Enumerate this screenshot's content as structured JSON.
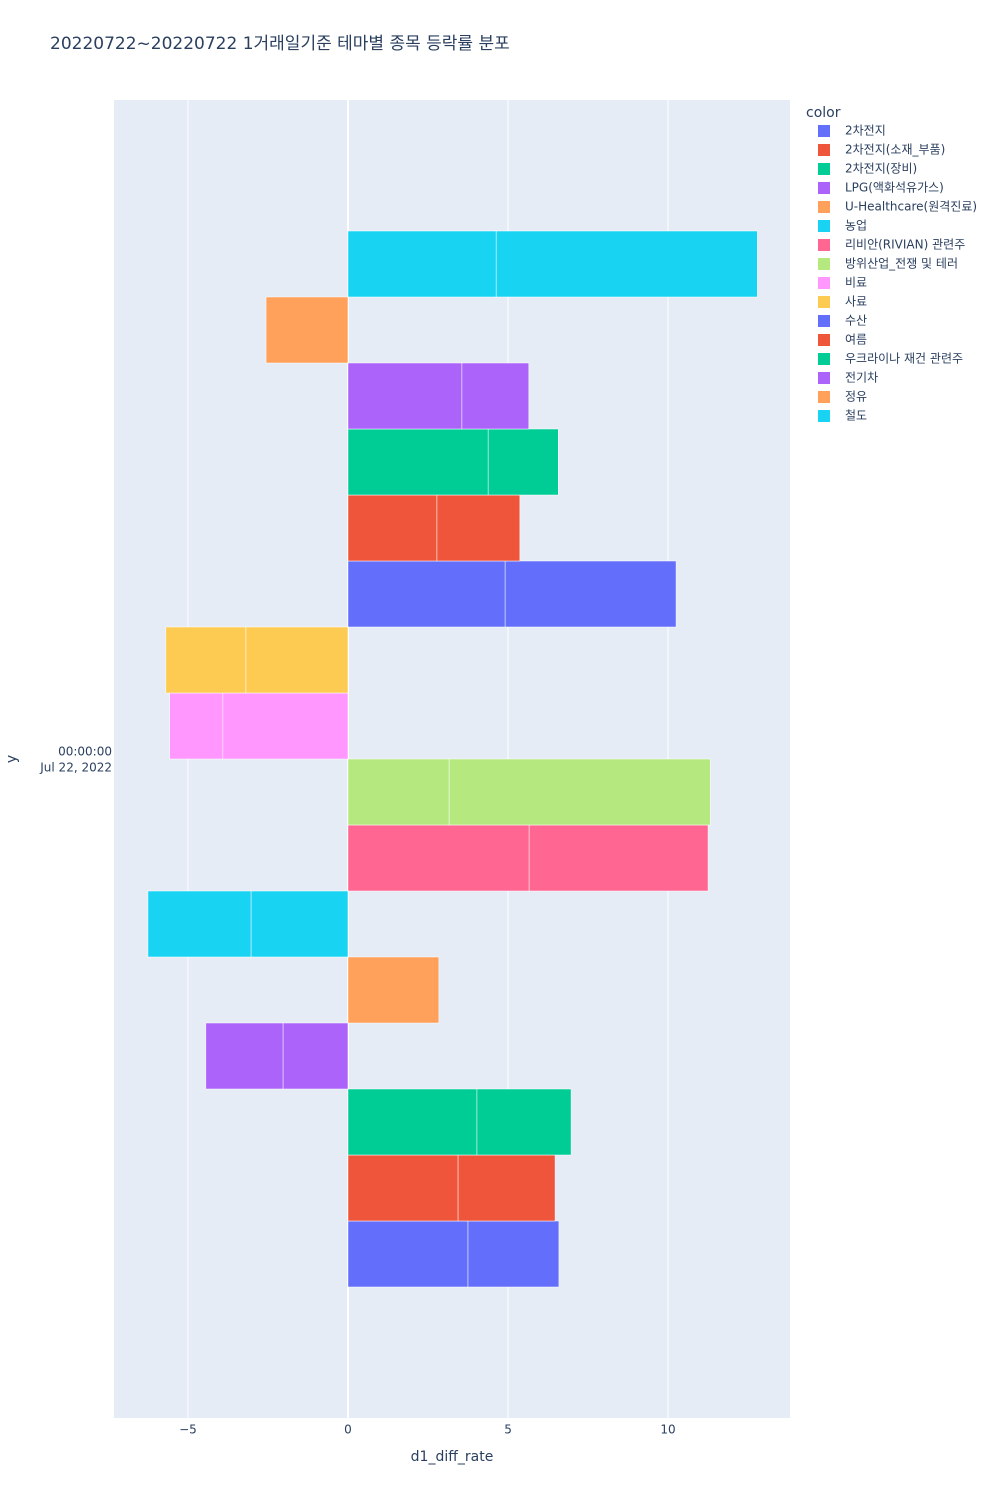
{
  "chart_data": {
    "type": "bar",
    "orientation": "h",
    "title": "20220722~20220722 1거래일기준 테마별 종목 등락률 분포",
    "x_label": "d1_diff_rate",
    "y_label": "y",
    "y_tick_label": [
      "00:00:00",
      "Jul 22, 2022"
    ],
    "legend_title": "color",
    "xlim": [
      -7.31,
      13.81
    ],
    "xticks": [
      {
        "value": -5,
        "label": "−5"
      },
      0,
      5,
      10
    ],
    "grid": true,
    "series": [
      {
        "name": "2차전지",
        "color": "#636efa",
        "values": [
          3.75,
          2.84
        ]
      },
      {
        "name": "2차전지(소재_부품)",
        "color": "#EF553B",
        "values": [
          3.44,
          3.03
        ]
      },
      {
        "name": "2차전지(장비)",
        "color": "#00cc96",
        "values": [
          4.03,
          2.94
        ]
      },
      {
        "name": "LPG(액화석유가스)",
        "color": "#ab63fa",
        "values": [
          -2.03,
          -2.41
        ]
      },
      {
        "name": "U-Healthcare(원격진료)",
        "color": "#FFA15A",
        "values": [
          2.84
        ]
      },
      {
        "name": "농업",
        "color": "#19d3f3",
        "values": [
          -3.03,
          -3.22
        ]
      },
      {
        "name": "리비안(RIVIAN) 관련주",
        "color": "#FF6692",
        "values": [
          5.66,
          5.59
        ]
      },
      {
        "name": "방위산업_전쟁 및 테러",
        "color": "#B6E880",
        "values": [
          3.16,
          8.16
        ]
      },
      {
        "name": "비료",
        "color": "#FF97FF",
        "values": [
          -3.91,
          -1.66
        ]
      },
      {
        "name": "사료",
        "color": "#FECB52",
        "values": [
          -3.19,
          -2.5
        ]
      },
      {
        "name": "수산",
        "color": "#636efa",
        "values": [
          4.91,
          5.34
        ]
      },
      {
        "name": "여름",
        "color": "#EF553B",
        "values": [
          2.78,
          2.59
        ]
      },
      {
        "name": "우크라이나 재건 관련주",
        "color": "#00cc96",
        "values": [
          4.38,
          2.19
        ]
      },
      {
        "name": "전기차",
        "color": "#ab63fa",
        "values": [
          3.56,
          2.09
        ]
      },
      {
        "name": "정유",
        "color": "#FFA15A",
        "values": [
          -2.56
        ]
      },
      {
        "name": "철도",
        "color": "#19d3f3",
        "values": [
          4.63,
          8.16
        ]
      }
    ]
  }
}
